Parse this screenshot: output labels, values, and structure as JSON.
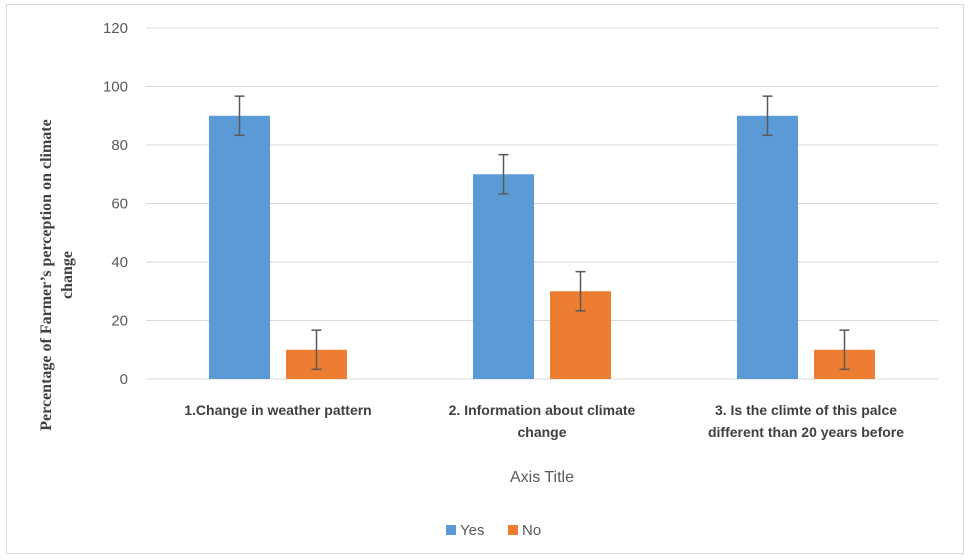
{
  "chart_data": {
    "type": "bar",
    "title": "",
    "xlabel": "Axis Title",
    "ylabel_lines": [
      "Percentage of Farmer’s perception on climate",
      "change"
    ],
    "categories": [
      [
        "1.Change in weather pattern"
      ],
      [
        "2. Information about climate",
        "change"
      ],
      [
        "3. Is the climte of this palce",
        "different than 20 years before"
      ]
    ],
    "series": [
      {
        "name": "Yes",
        "color": "#5b9bd5",
        "values": [
          90,
          70,
          90
        ],
        "error": [
          6.7,
          6.7,
          6.7
        ]
      },
      {
        "name": "No",
        "color": "#ed7d31",
        "values": [
          10,
          30,
          10
        ],
        "error": [
          6.7,
          6.7,
          6.7
        ]
      }
    ],
    "ylim": [
      0,
      120
    ],
    "yticks": [
      0,
      20,
      40,
      60,
      80,
      100,
      120
    ],
    "grid": true,
    "legend": "bottom"
  }
}
